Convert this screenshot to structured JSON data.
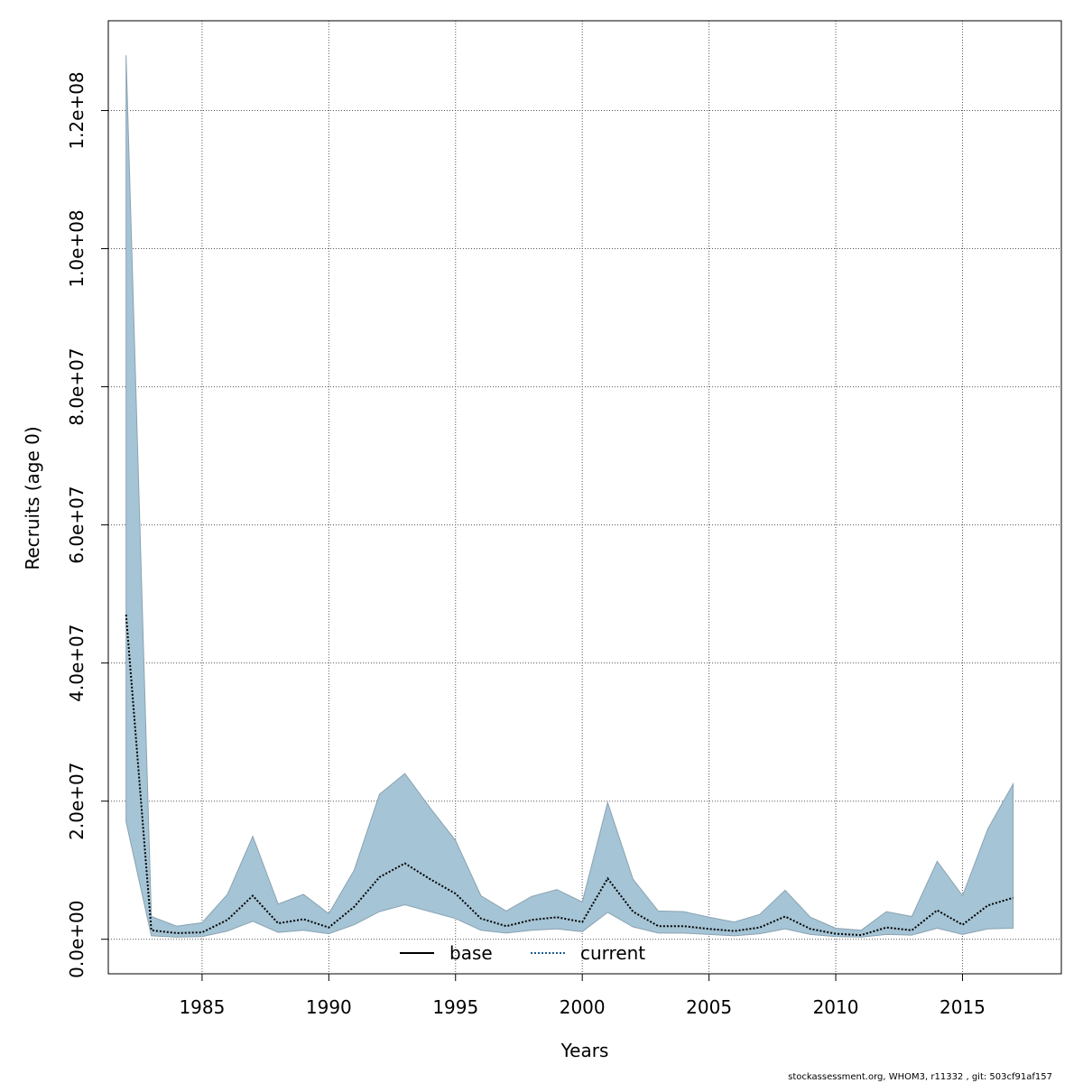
{
  "chart_data": {
    "type": "area",
    "title": "",
    "xlabel": "Years",
    "ylabel": "Recruits (age 0)",
    "xlim": [
      1981.3,
      2018.9
    ],
    "ylim": [
      -5000000,
      133000000
    ],
    "grid": true,
    "x_ticks": [
      1985,
      1990,
      1995,
      2000,
      2005,
      2010,
      2015
    ],
    "x_tick_labels": [
      "1985",
      "1990",
      "1995",
      "2000",
      "2005",
      "2010",
      "2015"
    ],
    "y_ticks": [
      0,
      20000000,
      40000000,
      60000000,
      80000000,
      100000000,
      120000000
    ],
    "y_tick_labels": [
      "0.0e+00",
      "2.0e+07",
      "4.0e+07",
      "6.0e+07",
      "8.0e+07",
      "1.0e+08",
      "1.2e+08"
    ],
    "legend": {
      "placement": "bottom-center",
      "entries": [
        {
          "name": "base",
          "style": "solid",
          "color": "#000000"
        },
        {
          "name": "current",
          "style": "dotted",
          "color": "#1f5f8f"
        }
      ]
    },
    "x": [
      1982,
      1983,
      1984,
      1985,
      1986,
      1987,
      1988,
      1989,
      1990,
      1991,
      1992,
      1993,
      1994,
      1995,
      1996,
      1997,
      1998,
      1999,
      2000,
      2001,
      2002,
      2003,
      2004,
      2005,
      2006,
      2007,
      2008,
      2009,
      2010,
      2011,
      2012,
      2013,
      2014,
      2015,
      2016,
      2017
    ],
    "series": [
      {
        "name": "current",
        "values": [
          47000000,
          1300000,
          900000,
          1000000,
          2800000,
          6300000,
          2300000,
          2900000,
          1700000,
          4700000,
          9000000,
          11000000,
          8700000,
          6600000,
          3000000,
          1900000,
          2800000,
          3200000,
          2500000,
          8800000,
          4000000,
          1900000,
          1900000,
          1500000,
          1200000,
          1700000,
          3300000,
          1500000,
          800000,
          600000,
          1700000,
          1300000,
          4200000,
          2100000,
          4900000,
          6000000
        ]
      },
      {
        "name": "upper",
        "values": [
          128000000,
          3300000,
          1900000,
          2400000,
          6500000,
          14900000,
          5100000,
          6500000,
          3700000,
          10000000,
          21000000,
          24000000,
          19000000,
          14300000,
          6300000,
          4100000,
          6200000,
          7200000,
          5400000,
          19800000,
          8700000,
          4100000,
          4000000,
          3200000,
          2500000,
          3600000,
          7100000,
          3200000,
          1600000,
          1300000,
          4000000,
          3300000,
          11300000,
          6300000,
          16000000,
          22500000
        ]
      },
      {
        "name": "lower",
        "values": [
          17000000,
          500000,
          300000,
          400000,
          1200000,
          2600000,
          1000000,
          1300000,
          800000,
          2100000,
          4000000,
          5000000,
          4000000,
          3000000,
          1300000,
          900000,
          1300000,
          1500000,
          1100000,
          3900000,
          1800000,
          900000,
          900000,
          700000,
          500000,
          800000,
          1500000,
          700000,
          400000,
          300000,
          700000,
          600000,
          1600000,
          700000,
          1500000,
          1600000
        ]
      }
    ],
    "band_color": "#a5c4d5"
  },
  "footer": "stockassessment.org, WHOM3, r11332 , git: 503cf91af157"
}
